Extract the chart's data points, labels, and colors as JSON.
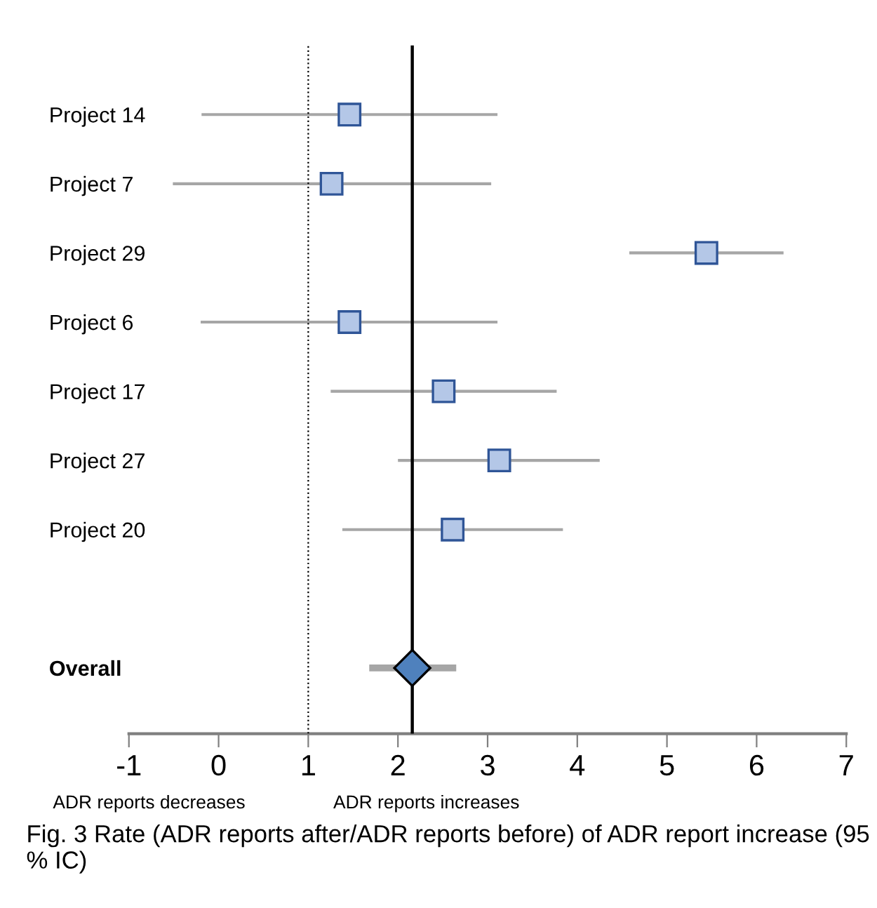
{
  "chart_data": {
    "type": "scatter",
    "orientation": "horizontal",
    "categories": [
      "Project 14",
      "Project 7",
      "Project 29",
      "Project 6",
      "Project 17",
      "Project 27",
      "Project 20",
      null,
      "Overall"
    ],
    "series": [
      {
        "type": "scatter",
        "marker": "square",
        "color": "#b4c7e7",
        "values": [
          1.46,
          1.26,
          5.44,
          1.46,
          2.51,
          3.13,
          2.61,
          null,
          null
        ],
        "errors": [
          [
            -0.19,
            3.11
          ],
          [
            -0.51,
            3.04
          ],
          [
            4.58,
            6.3
          ],
          [
            -0.2,
            3.11
          ],
          [
            1.25,
            3.77
          ],
          [
            2.0,
            4.25
          ],
          [
            1.38,
            3.84
          ],
          null,
          null
        ]
      },
      {
        "type": "scatter",
        "marker": "diamond",
        "color": "#4f81bd",
        "values": [
          null,
          null,
          null,
          null,
          null,
          null,
          null,
          null,
          2.16
        ],
        "errors": [
          null,
          null,
          null,
          null,
          null,
          null,
          null,
          null,
          [
            1.68,
            2.65
          ]
        ]
      }
    ],
    "xlim": [
      -1,
      7
    ],
    "xticks": [
      -1,
      0,
      1,
      2,
      3,
      4,
      5,
      6,
      7
    ],
    "grid": false,
    "ref_lines": [
      {
        "axis": "x",
        "value": 1,
        "line_style": "dotted",
        "color": "#000000"
      },
      {
        "axis": "x",
        "value": 2.16,
        "line_style": "solid",
        "color": "#000000"
      }
    ],
    "annotations": [
      "ADR reports decreases",
      "ADR reports increases",
      "Fig. 3 Rate (ADR reports after/ADR reports before) of ADR report increase (95 % IC)"
    ]
  }
}
